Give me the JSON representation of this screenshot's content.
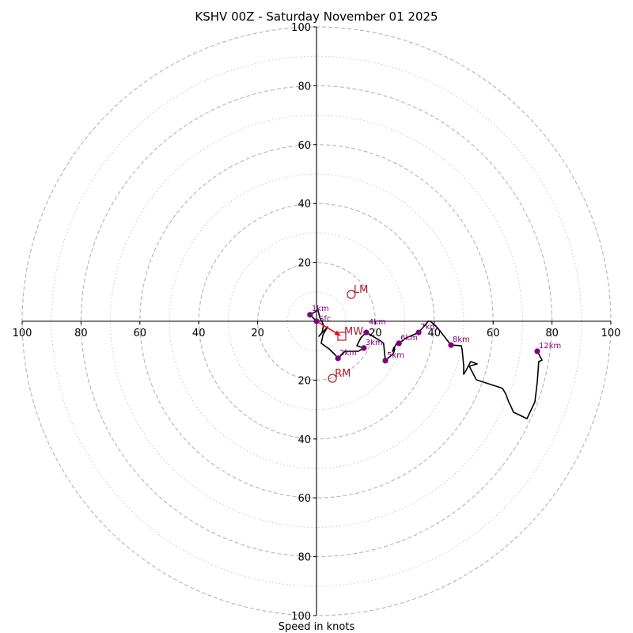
{
  "chart_data": {
    "type": "hodograph",
    "title": "KSHV 00Z - Saturday November 01 2025",
    "xlabel": "Speed in knots",
    "ylabel": "",
    "xlim": [
      -100,
      100
    ],
    "ylim": [
      -100,
      100
    ],
    "x_ticks": [
      {
        "value": -100,
        "label": "100"
      },
      {
        "value": -80,
        "label": "80"
      },
      {
        "value": -60,
        "label": "60"
      },
      {
        "value": -40,
        "label": "40"
      },
      {
        "value": -20,
        "label": "20"
      },
      {
        "value": 20,
        "label": "20"
      },
      {
        "value": 40,
        "label": "40"
      },
      {
        "value": 60,
        "label": "60"
      },
      {
        "value": 80,
        "label": "80"
      },
      {
        "value": 100,
        "label": "100"
      }
    ],
    "y_ticks": [
      {
        "value": 100,
        "label": "100"
      },
      {
        "value": 80,
        "label": "80"
      },
      {
        "value": 60,
        "label": "60"
      },
      {
        "value": 40,
        "label": "40"
      },
      {
        "value": 20,
        "label": "20"
      },
      {
        "value": -20,
        "label": "20"
      },
      {
        "value": -40,
        "label": "40"
      },
      {
        "value": -60,
        "label": "60"
      },
      {
        "value": -80,
        "label": "80"
      },
      {
        "value": -100,
        "label": "100"
      }
    ],
    "rings_dashed": [
      20,
      40,
      60,
      80,
      100
    ],
    "rings_dotted": [
      10,
      30,
      50,
      70,
      90
    ],
    "grid": true,
    "trace": {
      "name": "wind profile",
      "color": "#000000",
      "points": [
        [
          0,
          0
        ],
        [
          -2.2,
          2.2
        ],
        [
          0.5,
          3.8
        ],
        [
          1.1,
          1.3
        ],
        [
          2.4,
          -1.3
        ],
        [
          1.9,
          -3.8
        ],
        [
          0.8,
          -5.1
        ],
        [
          3.8,
          -1.9
        ],
        [
          2.2,
          -4.6
        ],
        [
          1.6,
          -7.5
        ],
        [
          4.3,
          -9.4
        ],
        [
          6.2,
          -11.3
        ],
        [
          7.3,
          -12.6
        ],
        [
          9.7,
          -10.2
        ],
        [
          14.2,
          -10.2
        ],
        [
          16.1,
          -9.1
        ],
        [
          13.7,
          -8.3
        ],
        [
          15.1,
          -5.6
        ],
        [
          16.9,
          -3.8
        ],
        [
          19.6,
          -5.4
        ],
        [
          21.8,
          -6.7
        ],
        [
          22.8,
          -7.5
        ],
        [
          23.4,
          -13.4
        ],
        [
          26.1,
          -11.0
        ],
        [
          26.6,
          -9.4
        ],
        [
          26.3,
          -8.9
        ],
        [
          25.8,
          -10.2
        ],
        [
          27.2,
          -7.5
        ],
        [
          28.0,
          -7.5
        ],
        [
          30.6,
          -5.6
        ],
        [
          33.6,
          -4.3
        ],
        [
          34.7,
          -3.8
        ],
        [
          37.1,
          -1.1
        ],
        [
          37.9,
          0
        ],
        [
          38.7,
          0
        ],
        [
          41.1,
          -2.2
        ],
        [
          45.7,
          -8.1
        ],
        [
          49.2,
          -8.3
        ],
        [
          49.5,
          -9.7
        ],
        [
          50.0,
          -15.1
        ],
        [
          50.0,
          -18.0
        ],
        [
          50.5,
          -17.2
        ],
        [
          52.4,
          -13.7
        ],
        [
          54.6,
          -14.5
        ],
        [
          51.9,
          -15.3
        ],
        [
          54.3,
          -19.9
        ],
        [
          63.2,
          -22.8
        ],
        [
          64.3,
          -24.7
        ],
        [
          65.3,
          -27.4
        ],
        [
          66.1,
          -29.0
        ],
        [
          66.9,
          -30.9
        ],
        [
          71.5,
          -33.1
        ],
        [
          74.2,
          -27.4
        ],
        [
          75.0,
          -20.7
        ],
        [
          75.5,
          -13.7
        ],
        [
          76.6,
          -13.2
        ],
        [
          75.0,
          -10.2
        ]
      ]
    },
    "height_markers": {
      "color": "#800080",
      "points": [
        {
          "label": "Sfc",
          "u": 0,
          "v": 0
        },
        {
          "label": "1km",
          "u": -2.2,
          "v": 2.2
        },
        {
          "label": "2km",
          "u": 7.3,
          "v": -12.6
        },
        {
          "label": "3km",
          "u": 16.1,
          "v": -9.1
        },
        {
          "label": "4km",
          "u": 16.9,
          "v": -3.8
        },
        {
          "label": "5km",
          "u": 23.4,
          "v": -13.4
        },
        {
          "label": "6km",
          "u": 28.0,
          "v": -7.5
        },
        {
          "label": "7km",
          "u": 34.7,
          "v": -3.8
        },
        {
          "label": "8km",
          "u": 45.7,
          "v": -8.1
        },
        {
          "label": "12km",
          "u": 75.0,
          "v": -10.2
        }
      ]
    },
    "storm_motion": {
      "color": "#b2182b",
      "left_mover": {
        "label": "LM",
        "u": 11.8,
        "v": 9.1,
        "marker": "circle"
      },
      "right_mover": {
        "label": "RM",
        "u": 5.4,
        "v": -19.4,
        "marker": "circle"
      },
      "mean_wind": {
        "label": "MW",
        "u": 8.6,
        "v": -5.1,
        "marker": "square"
      }
    },
    "shear_arrow": {
      "color": "#ff0000",
      "from": [
        0,
        0
      ],
      "to": [
        8.6,
        -5.1
      ]
    }
  }
}
